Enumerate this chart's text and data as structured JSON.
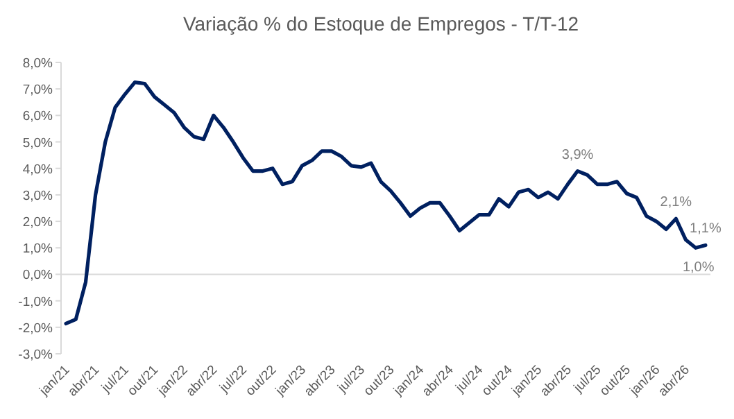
{
  "chart_data": {
    "type": "line",
    "title": "Variação % do Estoque de Empregos - T/T-12",
    "categories": [
      "jan/21",
      null,
      null,
      "abr/21",
      null,
      null,
      "jul/21",
      null,
      null,
      "out/21",
      null,
      null,
      "jan/22",
      null,
      null,
      "abr/22",
      null,
      null,
      "jul/22",
      null,
      null,
      "out/22",
      null,
      null,
      "jan/23",
      null,
      null,
      "abr/23",
      null,
      null,
      "jul/23",
      null,
      null,
      "out/23",
      null,
      null,
      "jan/24",
      null,
      null,
      "abr/24",
      null,
      null,
      "jul/24",
      null,
      null,
      "out/24",
      null,
      null,
      "jan/25",
      null,
      null,
      "abr/25",
      null,
      null,
      "jul/25",
      null,
      null,
      "out/25",
      null,
      null,
      "jan/26",
      null,
      null,
      "abr/26",
      null,
      null
    ],
    "series": [
      {
        "color": "#002060",
        "values": [
          -1.86,
          -1.7,
          -0.3,
          3.0,
          5.0,
          6.3,
          6.8,
          7.25,
          7.2,
          6.7,
          6.4,
          6.1,
          5.55,
          5.2,
          5.1,
          6.0,
          5.55,
          5.0,
          4.4,
          3.9,
          3.9,
          4.0,
          3.4,
          3.5,
          4.1,
          4.3,
          4.65,
          4.65,
          4.45,
          4.1,
          4.05,
          4.2,
          3.5,
          3.15,
          2.7,
          2.2,
          2.5,
          2.7,
          2.7,
          2.2,
          1.65,
          1.95,
          2.25,
          2.25,
          2.85,
          2.55,
          3.1,
          3.2,
          2.9,
          3.1,
          2.85,
          3.4,
          3.9,
          3.75,
          3.4,
          3.4,
          3.5,
          3.05,
          2.9,
          2.2,
          2.0,
          1.7,
          2.1,
          1.3,
          1.0,
          1.1
        ],
        "value_labels": [
          null,
          null,
          null,
          null,
          null,
          null,
          null,
          null,
          null,
          null,
          null,
          null,
          null,
          null,
          null,
          null,
          null,
          null,
          null,
          null,
          null,
          null,
          null,
          null,
          null,
          null,
          null,
          null,
          null,
          null,
          null,
          null,
          null,
          null,
          null,
          null,
          null,
          null,
          null,
          null,
          null,
          null,
          null,
          null,
          null,
          null,
          null,
          null,
          null,
          null,
          null,
          null,
          "3,9%",
          null,
          null,
          null,
          null,
          null,
          null,
          null,
          null,
          null,
          "2,1%",
          null,
          "1,0%",
          "1,1%"
        ]
      }
    ],
    "ylim": [
      -3,
      8
    ],
    "yticks": [
      {
        "value": -3,
        "label": "-3,0%"
      },
      {
        "value": -2,
        "label": "-2,0%"
      },
      {
        "value": -1,
        "label": "-1,0%"
      },
      {
        "value": 0,
        "label": "0,0%"
      },
      {
        "value": 1,
        "label": "1,0%"
      },
      {
        "value": 2,
        "label": "2,0%"
      },
      {
        "value": 3,
        "label": "3,0%"
      },
      {
        "value": 4,
        "label": "4,0%"
      },
      {
        "value": 5,
        "label": "5,0%"
      },
      {
        "value": 6,
        "label": "6,0%"
      },
      {
        "value": 7,
        "label": "7,0%"
      },
      {
        "value": 8,
        "label": "8,0%"
      }
    ],
    "marker": "none",
    "line_style": "solid"
  }
}
